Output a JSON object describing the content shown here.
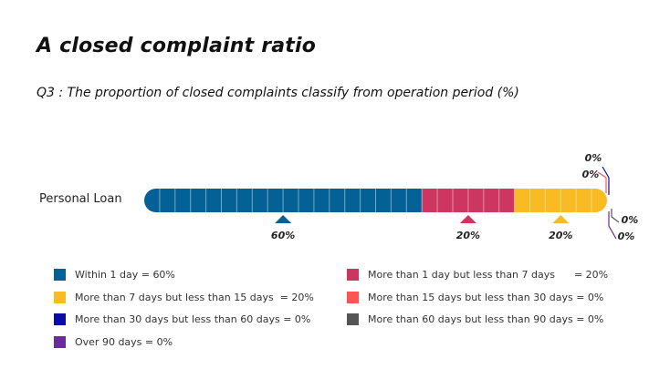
{
  "header": {
    "title": "A closed complaint ratio",
    "subtitle": "Q3 : The proportion of closed complaints classify from operation period (%)"
  },
  "chart_data": {
    "type": "bar",
    "orientation": "horizontal-stacked",
    "title": "A closed complaint ratio",
    "subtitle": "Q3 : The proportion of closed complaints classify from operation period (%)",
    "categories": [
      "Personal Loan"
    ],
    "xlim": [
      0,
      100
    ],
    "series": [
      {
        "name": "Within 1 day",
        "values": [
          60
        ],
        "color": "#036196",
        "label": "60%",
        "legend": "Within 1 day = 60%"
      },
      {
        "name": "More than 1 day but less than 7 days",
        "values": [
          20
        ],
        "color": "#cc3660",
        "label": "20%",
        "legend": "More than 1 day but less than 7 days      = 20%"
      },
      {
        "name": "More than 7 days but less than 15 days",
        "values": [
          20
        ],
        "color": "#f8bb23",
        "label": "20%",
        "legend": "More than 7 days but less than 15 days  = 20%"
      },
      {
        "name": "More than 15 days but less than 30 days",
        "values": [
          0
        ],
        "color": "#fd5454",
        "label": "0%",
        "legend": "More than 15 days but less than 30 days = 0%"
      },
      {
        "name": "More than 30 days but less than 60 days",
        "values": [
          0
        ],
        "color": "#0a0da3",
        "label": "0%",
        "legend": "More than 30 days but less than 60 days = 0%"
      },
      {
        "name": "More than 60 days but less than 90 days",
        "values": [
          0
        ],
        "color": "#555555",
        "label": "0%",
        "legend": "More than 60 days but less than 90 days = 0%"
      },
      {
        "name": "Over 90 days",
        "values": [
          0
        ],
        "color": "#6c2b9a",
        "label": "0%",
        "legend": "Over 90 days = 0%"
      }
    ],
    "legend_placement": "bottom"
  }
}
